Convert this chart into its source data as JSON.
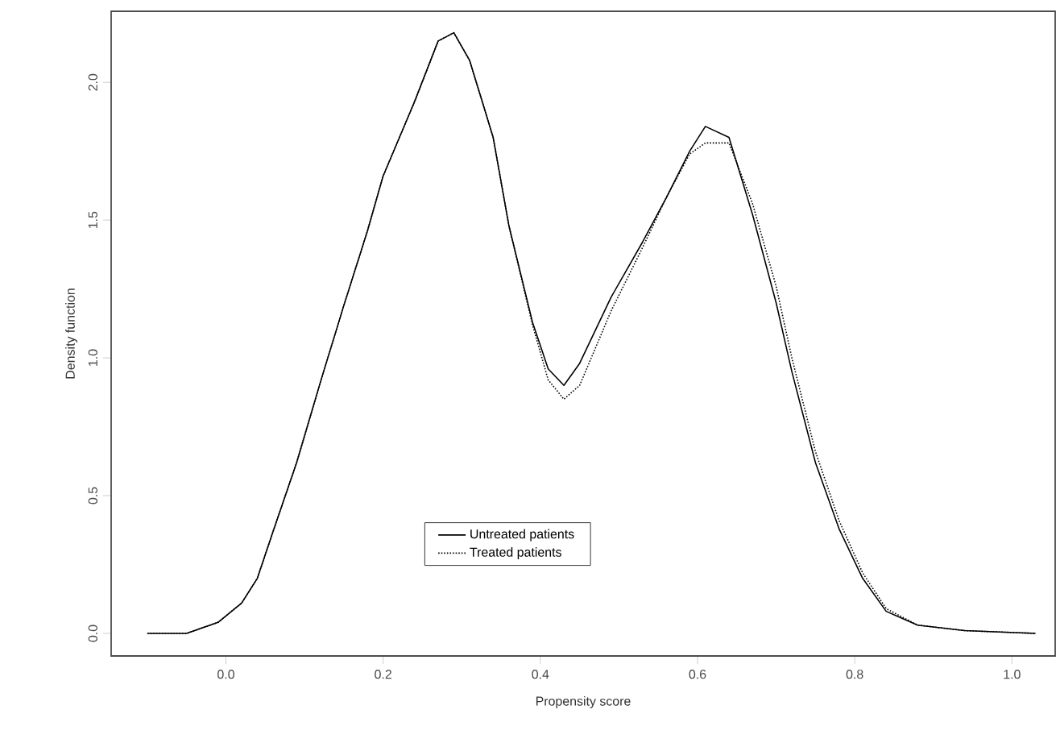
{
  "chart_data": {
    "type": "line",
    "xlabel": "Propensity score",
    "ylabel": "Density function",
    "x": [
      -0.1,
      -0.05,
      -0.01,
      0.02,
      0.04,
      0.06,
      0.09,
      0.12,
      0.15,
      0.18,
      0.2,
      0.24,
      0.27,
      0.29,
      0.31,
      0.34,
      0.36,
      0.39,
      0.41,
      0.43,
      0.45,
      0.49,
      0.53,
      0.56,
      0.59,
      0.61,
      0.64,
      0.67,
      0.7,
      0.72,
      0.75,
      0.78,
      0.81,
      0.84,
      0.88,
      0.94,
      1.03
    ],
    "series": [
      {
        "name": "Untreated patients",
        "color": "#000000",
        "line_style": "solid",
        "values": [
          0,
          0,
          0.04,
          0.11,
          0.2,
          0.37,
          0.62,
          0.91,
          1.19,
          1.46,
          1.66,
          1.93,
          2.15,
          2.18,
          2.08,
          1.8,
          1.48,
          1.13,
          0.96,
          0.9,
          0.98,
          1.22,
          1.42,
          1.58,
          1.75,
          1.84,
          1.8,
          1.52,
          1.2,
          0.95,
          0.62,
          0.38,
          0.2,
          0.08,
          0.03,
          0.01,
          0
        ]
      },
      {
        "name": "Treated patients",
        "color": "#000000",
        "line_style": "dotted",
        "values": [
          0,
          0,
          0.04,
          0.11,
          0.2,
          0.37,
          0.62,
          0.91,
          1.19,
          1.46,
          1.66,
          1.93,
          2.15,
          2.18,
          2.08,
          1.8,
          1.48,
          1.12,
          0.92,
          0.85,
          0.9,
          1.17,
          1.4,
          1.58,
          1.74,
          1.78,
          1.78,
          1.56,
          1.26,
          1.0,
          0.66,
          0.41,
          0.22,
          0.09,
          0.03,
          0.01,
          0
        ]
      }
    ],
    "xlim": [
      -0.146,
      1.055
    ],
    "ylim": [
      -0.082,
      2.258
    ],
    "xticks": [
      {
        "value": 0,
        "label": "0.0"
      },
      0.2,
      0.4,
      0.6,
      0.8,
      {
        "value": 1,
        "label": "1.0"
      }
    ],
    "yticks": [
      {
        "value": 0,
        "label": "0.0"
      },
      0.5,
      {
        "value": 1,
        "label": "1.0"
      },
      1.5,
      {
        "value": 2,
        "label": "2.0"
      }
    ],
    "legend": "bottom",
    "grid": false,
    "marker": "none"
  }
}
